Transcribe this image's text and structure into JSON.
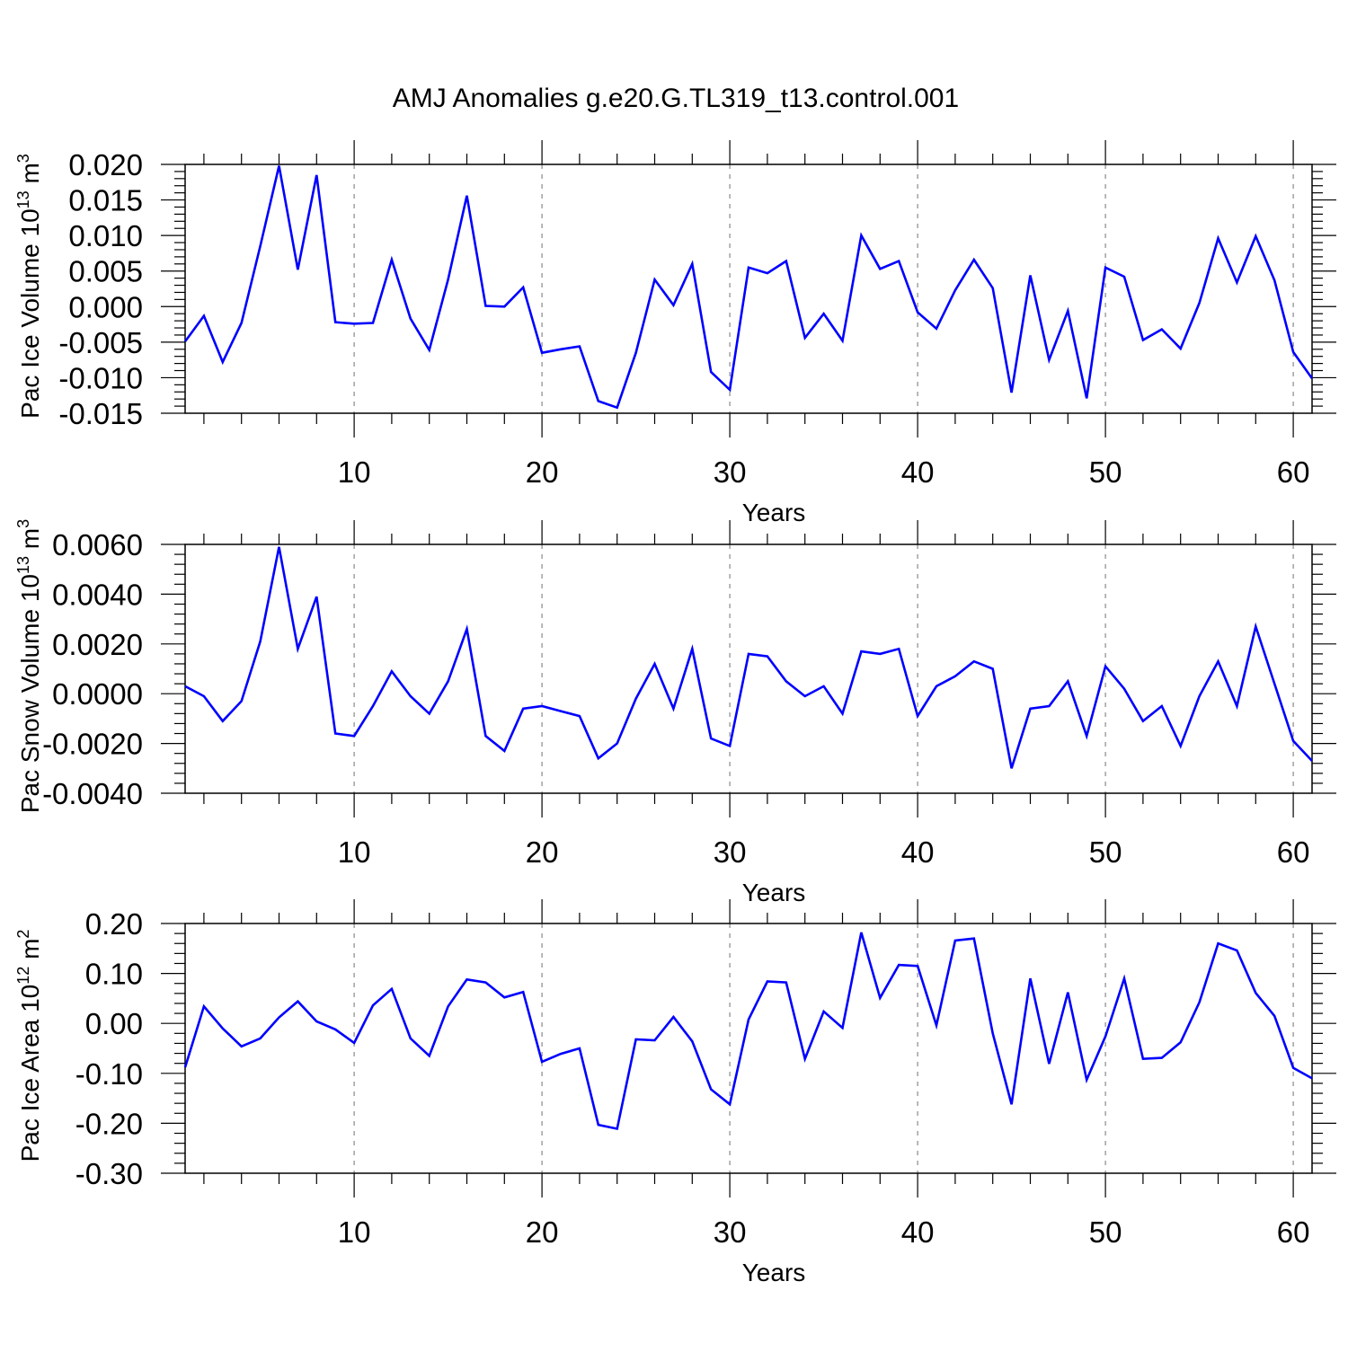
{
  "title": "AMJ Anomalies g.e20.G.TL319_t13.control.001",
  "line_color": "#0000ff",
  "chart_data": [
    {
      "type": "line",
      "ylabel_main": "Pac Ice Volume 10",
      "ylabel_exp": "13",
      "ylabel_unit": " m",
      "ylabel_unit_exp": "3",
      "xlabel": "Years",
      "xlim": [
        1,
        61
      ],
      "ylim": [
        -0.015,
        0.02
      ],
      "xticks": [
        10,
        20,
        30,
        40,
        50,
        60
      ],
      "xtick_labels": [
        "10",
        "20",
        "30",
        "40",
        "50",
        "60"
      ],
      "yticks": [
        -0.015,
        -0.01,
        -0.005,
        0.0,
        0.005,
        0.01,
        0.015,
        0.02
      ],
      "ytick_labels": [
        "-0.015",
        "-0.010",
        "-0.005",
        "0.000",
        "0.005",
        "0.010",
        "0.015",
        "0.020"
      ],
      "grid_x": [
        10,
        20,
        30,
        40,
        50,
        60
      ],
      "series": [
        {
          "name": "Pac Ice Volume",
          "x": [
            1,
            2,
            3,
            4,
            5,
            6,
            7,
            8,
            9,
            10,
            11,
            12,
            13,
            14,
            15,
            16,
            17,
            18,
            19,
            20,
            21,
            22,
            23,
            24,
            25,
            26,
            27,
            28,
            29,
            30,
            31,
            32,
            33,
            34,
            35,
            36,
            37,
            38,
            39,
            40,
            41,
            42,
            43,
            44,
            45,
            46,
            47,
            48,
            49,
            50,
            51,
            52,
            53,
            54,
            55,
            56,
            57,
            58,
            59,
            60,
            61
          ],
          "values": [
            -0.0049,
            -0.0013,
            -0.0078,
            -0.0023,
            0.0085,
            0.0198,
            0.0052,
            0.0185,
            -0.0022,
            -0.0024,
            -0.0023,
            0.0066,
            -0.0017,
            -0.0061,
            0.0038,
            0.0156,
            0.0001,
            0.0,
            0.0027,
            -0.0065,
            -0.006,
            -0.0056,
            -0.0133,
            -0.0142,
            -0.0065,
            0.0038,
            0.0002,
            0.006,
            -0.0092,
            -0.0117,
            0.0055,
            0.0047,
            0.0064,
            -0.0044,
            -0.001,
            -0.0048,
            0.01,
            0.0053,
            0.0064,
            -0.0008,
            -0.0031,
            0.0023,
            0.0066,
            0.0026,
            -0.0121,
            0.0044,
            -0.0075,
            -0.0006,
            -0.0129,
            0.0055,
            0.0042,
            -0.0047,
            -0.0032,
            -0.0059,
            0.0005,
            0.0096,
            0.0034,
            0.0099,
            0.0037,
            -0.0064,
            -0.0101
          ]
        }
      ]
    },
    {
      "type": "line",
      "ylabel_main": "Pac Snow Volume 10",
      "ylabel_exp": "13",
      "ylabel_unit": " m",
      "ylabel_unit_exp": "3",
      "xlabel": "Years",
      "xlim": [
        1,
        61
      ],
      "ylim": [
        -0.004,
        0.006
      ],
      "xticks": [
        10,
        20,
        30,
        40,
        50,
        60
      ],
      "xtick_labels": [
        "10",
        "20",
        "30",
        "40",
        "50",
        "60"
      ],
      "yticks": [
        -0.004,
        -0.002,
        0.0,
        0.002,
        0.004,
        0.006
      ],
      "ytick_labels": [
        "-0.0040",
        "-0.0020",
        "0.0000",
        "0.0020",
        "0.0040",
        "0.0060"
      ],
      "grid_x": [
        10,
        20,
        30,
        40,
        50,
        60
      ],
      "series": [
        {
          "name": "Pac Snow Volume",
          "x": [
            1,
            2,
            3,
            4,
            5,
            6,
            7,
            8,
            9,
            10,
            11,
            12,
            13,
            14,
            15,
            16,
            17,
            18,
            19,
            20,
            21,
            22,
            23,
            24,
            25,
            26,
            27,
            28,
            29,
            30,
            31,
            32,
            33,
            34,
            35,
            36,
            37,
            38,
            39,
            40,
            41,
            42,
            43,
            44,
            45,
            46,
            47,
            48,
            49,
            50,
            51,
            52,
            53,
            54,
            55,
            56,
            57,
            58,
            59,
            60,
            61
          ],
          "values": [
            0.0003,
            -0.0001,
            -0.0011,
            -0.0003,
            0.0021,
            0.0059,
            0.0018,
            0.0039,
            -0.0016,
            -0.0017,
            -0.0005,
            0.0009,
            -0.0001,
            -0.0008,
            0.0005,
            0.0026,
            -0.0017,
            -0.0023,
            -0.0006,
            -0.0005,
            -0.0007,
            -0.0009,
            -0.0026,
            -0.002,
            -0.0002,
            0.0012,
            -0.0006,
            0.0018,
            -0.0018,
            -0.0021,
            0.0016,
            0.0015,
            0.0005,
            -0.0001,
            0.0003,
            -0.0008,
            0.0017,
            0.0016,
            0.0018,
            -0.0009,
            0.0003,
            0.0007,
            0.0013,
            0.001,
            -0.003,
            -0.0006,
            -0.0005,
            0.0005,
            -0.0017,
            0.0011,
            0.0002,
            -0.0011,
            -0.0005,
            -0.0021,
            -0.0001,
            0.0013,
            -0.0005,
            0.0027,
            0.0004,
            -0.0019,
            -0.0027
          ]
        }
      ]
    },
    {
      "type": "line",
      "ylabel_main": "Pac Ice Area 10",
      "ylabel_exp": "12",
      "ylabel_unit": " m",
      "ylabel_unit_exp": "2",
      "xlabel": "Years",
      "xlim": [
        1,
        61
      ],
      "ylim": [
        -0.3,
        0.2
      ],
      "xticks": [
        10,
        20,
        30,
        40,
        50,
        60
      ],
      "xtick_labels": [
        "10",
        "20",
        "30",
        "40",
        "50",
        "60"
      ],
      "yticks": [
        -0.3,
        -0.2,
        -0.1,
        0.0,
        0.1,
        0.2
      ],
      "ytick_labels": [
        "-0.30",
        "-0.20",
        "-0.10",
        "0.00",
        "0.10",
        "0.20"
      ],
      "grid_x": [
        10,
        20,
        30,
        40,
        50,
        60
      ],
      "series": [
        {
          "name": "Pac Ice Area",
          "x": [
            1,
            2,
            3,
            4,
            5,
            6,
            7,
            8,
            9,
            10,
            11,
            12,
            13,
            14,
            15,
            16,
            17,
            18,
            19,
            20,
            21,
            22,
            23,
            24,
            25,
            26,
            27,
            28,
            29,
            30,
            31,
            32,
            33,
            34,
            35,
            36,
            37,
            38,
            39,
            40,
            41,
            42,
            43,
            44,
            45,
            46,
            47,
            48,
            49,
            50,
            51,
            52,
            53,
            54,
            55,
            56,
            57,
            58,
            59,
            60,
            61
          ],
          "values": [
            -0.088,
            0.034,
            -0.01,
            -0.046,
            -0.03,
            0.012,
            0.044,
            0.004,
            -0.012,
            -0.039,
            0.036,
            0.069,
            -0.03,
            -0.065,
            0.034,
            0.088,
            0.082,
            0.052,
            0.063,
            -0.077,
            -0.061,
            -0.05,
            -0.203,
            -0.211,
            -0.032,
            -0.034,
            0.013,
            -0.036,
            -0.132,
            -0.162,
            0.008,
            0.084,
            0.082,
            -0.071,
            0.024,
            -0.009,
            0.182,
            0.051,
            0.117,
            0.115,
            -0.004,
            0.166,
            0.17,
            -0.02,
            -0.162,
            0.09,
            -0.081,
            0.062,
            -0.113,
            -0.026,
            0.09,
            -0.071,
            -0.069,
            -0.038,
            0.042,
            0.16,
            0.146,
            0.061,
            0.015,
            -0.089,
            -0.11
          ]
        }
      ]
    }
  ]
}
